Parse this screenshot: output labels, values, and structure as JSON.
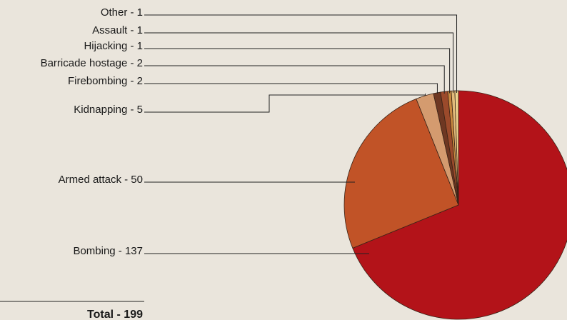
{
  "chart_data": {
    "type": "pie",
    "categories": [
      "Bombing",
      "Armed attack",
      "Kidnapping",
      "Firebombing",
      "Barricade hostage",
      "Hijacking",
      "Assault",
      "Other"
    ],
    "values": [
      137,
      50,
      5,
      2,
      2,
      1,
      1,
      1
    ],
    "labels": [
      "Bombing - 137",
      "Armed attack - 50",
      "Kidnapping - 5",
      "Firebombing - 2",
      "Barricade hostage - 2",
      "Hijacking - 1",
      "Assault - 1",
      "Other - 1"
    ],
    "colors": [
      "#b31319",
      "#c15327",
      "#d49b6f",
      "#6e3722",
      "#9b4a2b",
      "#c9893f",
      "#e2bb7a",
      "#efd58f"
    ],
    "total_label": "Total - 199"
  }
}
